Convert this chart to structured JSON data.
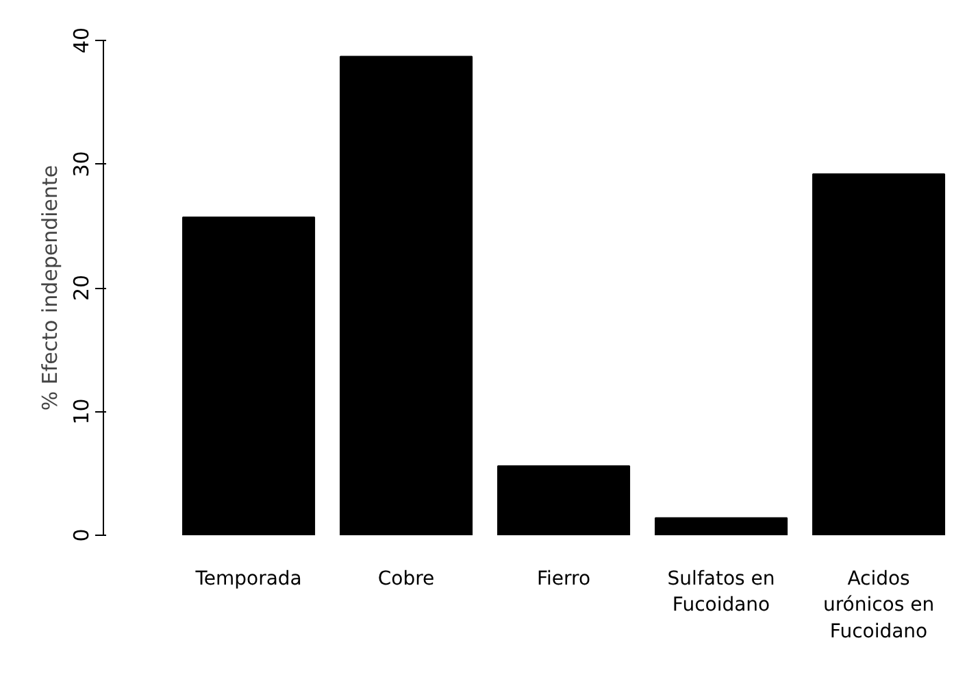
{
  "chart_data": {
    "type": "bar",
    "ylabel": "% Efecto independiente",
    "categories": [
      "Temporada",
      "Cobre",
      "Fierro",
      "Sulfatos en Fucoidano",
      "Acidos urónicos en Fucoidano"
    ],
    "values": [
      25.7,
      38.7,
      5.6,
      1.4,
      29.2
    ],
    "color": "#000000",
    "ylim": [
      0,
      40
    ],
    "yticks": [
      0,
      10,
      20,
      30,
      40
    ],
    "grid": false
  }
}
